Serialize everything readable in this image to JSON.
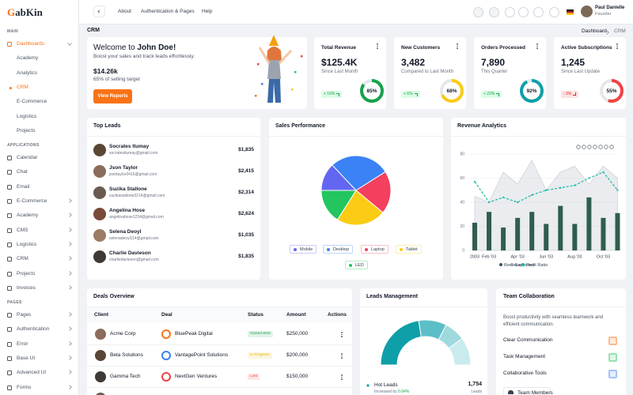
{
  "sidebar": {
    "logo": "GabKin",
    "sections": [
      {
        "title": "MAIN",
        "items": [
          {
            "label": "Dashboards",
            "submenu": true,
            "active": true,
            "children": [
              {
                "label": "Academy"
              },
              {
                "label": "Analytics"
              },
              {
                "label": "CRM",
                "active": true
              },
              {
                "label": "E-Commerce"
              },
              {
                "label": "Logistics"
              },
              {
                "label": "Projects"
              }
            ]
          }
        ]
      },
      {
        "title": "APPLICATIONS",
        "items": [
          {
            "label": "Calendar"
          },
          {
            "label": "Chat"
          },
          {
            "label": "Email"
          },
          {
            "label": "E-Commerce",
            "submenu": true
          },
          {
            "label": "Academy",
            "submenu": true
          },
          {
            "label": "CMS",
            "submenu": true
          },
          {
            "label": "Logistics",
            "submenu": true
          },
          {
            "label": "CRM",
            "submenu": true
          },
          {
            "label": "Projects",
            "submenu": true
          },
          {
            "label": "Invoices",
            "submenu": true
          }
        ]
      },
      {
        "title": "PAGES",
        "items": [
          {
            "label": "Pages",
            "submenu": true
          },
          {
            "label": "Authentication",
            "submenu": true
          },
          {
            "label": "Error",
            "submenu": true
          },
          {
            "label": "Base UI",
            "submenu": true
          },
          {
            "label": "Advanced UI",
            "submenu": true
          },
          {
            "label": "Forms",
            "submenu": true
          }
        ]
      }
    ]
  },
  "header": {
    "nav": [
      "About",
      "Authentication & Pages",
      "Help"
    ],
    "user": {
      "name": "Paul Danielle",
      "role": "Founder"
    }
  },
  "page": {
    "title": "CRM",
    "breadcrumb": [
      "Dashboard",
      "CRM"
    ]
  },
  "welcome": {
    "greeting": "Welcome to",
    "name": "John Doe!",
    "subtitle": "Boost your sales and track leads effortlessly.",
    "amount": "$14.26k",
    "target": "65% of selling target",
    "button": "View Reports"
  },
  "stats": [
    {
      "title": "Total Revenue",
      "value": "$125.4K",
      "subtitle": "Since Last Month",
      "change": "+ 16%",
      "trend": "up",
      "percent": 85,
      "percent_label": "85%",
      "color": "#16a34a"
    },
    {
      "title": "New Customers",
      "value": "3,482",
      "subtitle": "Compared to Last Month",
      "change": "+ 6%",
      "trend": "up",
      "percent": 68,
      "percent_label": "68%",
      "color": "#facc15"
    },
    {
      "title": "Orders Processed",
      "value": "7,890",
      "subtitle": "This Quarter",
      "change": "+ 22%",
      "trend": "up",
      "percent": 92,
      "percent_label": "92%",
      "color": "#0e9fa8"
    },
    {
      "title": "Active Subscriptions",
      "value": "1,245",
      "subtitle": "Since Last Update",
      "change": "- 3%",
      "trend": "down",
      "percent": 55,
      "percent_label": "55%",
      "color": "#ef4444"
    }
  ],
  "top_leads": {
    "title": "Top Leads",
    "leads": [
      {
        "name": "Socrates Itumay",
        "email": "socratesitumay@gmail.com",
        "amount": "$1,835"
      },
      {
        "name": "Json Taylor",
        "email": "jsontaylor2416@gmail.com",
        "amount": "$2,415"
      },
      {
        "name": "Suzika Stallone",
        "email": "suzikastallone3214@gmail.com",
        "amount": "$2,314"
      },
      {
        "name": "Angelina Hose",
        "email": "angelinahose1234@gmail.com",
        "amount": "$2,624"
      },
      {
        "name": "Selena Deoyl",
        "email": "selenadeoyl114@gmail.com",
        "amount": "$1,035"
      },
      {
        "name": "Charlie Davieson",
        "email": "charliedavieson@gmail.com",
        "amount": "$1,835"
      }
    ]
  },
  "sales_performance": {
    "title": "Sales Performance",
    "chart": {
      "type": "pie",
      "categories": [
        "Mobile",
        "Desktop",
        "Laptop",
        "Tablet",
        "LED"
      ],
      "values": [
        13,
        28,
        20,
        23,
        16
      ],
      "colors": [
        "#6366f1",
        "#3b82f6",
        "#f43f5e",
        "#facc15",
        "#22c55e"
      ]
    }
  },
  "revenue_analytics": {
    "title": "Revenue Analytics",
    "chart": {
      "type": "combo",
      "categories": [
        "2003",
        "Feb '03",
        null,
        "Apr '03",
        null,
        "Jun '03",
        null,
        "Aug '03",
        null,
        "Oct '03",
        null
      ],
      "series": [
        {
          "name": "Revenue",
          "type": "bar",
          "color": "#2f5d50",
          "values": [
            23,
            32,
            19,
            27,
            32,
            22,
            37,
            22,
            44,
            27,
            31
          ]
        },
        {
          "name": "Expenses",
          "type": "area",
          "color": "#d1d5db",
          "values": [
            45,
            40,
            65,
            55,
            75,
            50,
            65,
            70,
            55,
            70,
            60
          ]
        },
        {
          "name": "Profit Ratio",
          "type": "line",
          "color": "#14b8a6",
          "values": [
            57,
            40,
            44,
            40,
            46,
            50,
            52,
            54,
            60,
            65,
            50
          ]
        }
      ],
      "ylim": [
        0,
        80
      ],
      "yticks": [
        0,
        20,
        40,
        60,
        80
      ],
      "grid": true
    }
  },
  "deals_overview": {
    "title": "Deals Overview",
    "columns": [
      "Client",
      "Deal",
      "Status",
      "Amount",
      "Actions"
    ],
    "rows": [
      {
        "client": "Acme Corp",
        "deal": "BluePeak Digital",
        "status": "Closed Won",
        "status_color": "#16a34a",
        "amount": "$250,000"
      },
      {
        "client": "Beta Solutions",
        "deal": "VantagePoint Solutions",
        "status": "In Progress",
        "status_color": "#eab308",
        "amount": "$200,000"
      },
      {
        "client": "Gamma Tech",
        "deal": "NextGen Ventures",
        "status": "Lost",
        "status_color": "#ef4444",
        "amount": "$150,000"
      }
    ]
  },
  "leads_management": {
    "title": "Leads Management",
    "chart": {
      "type": "gauge",
      "values": [
        45,
        20,
        15,
        20
      ],
      "colors": [
        "#0e9fa8",
        "#5cbfc7",
        "#9ed9de",
        "#c9ebee"
      ]
    },
    "label": "Hot Leads",
    "change_text": "Increased by",
    "change_value": "0.64%",
    "count": "1,754",
    "unit": "Leads"
  },
  "team_collaboration": {
    "title": "Team Collaboration",
    "description": "Boost productivity with seamless teamwork and efficient communication.",
    "items": [
      {
        "label": "Clear Communication",
        "color": "#f97316"
      },
      {
        "label": "Task Management",
        "color": "#22c55e"
      },
      {
        "label": "Collaborative Tools",
        "color": "#3b82f6"
      }
    ],
    "members": "Team Members"
  }
}
